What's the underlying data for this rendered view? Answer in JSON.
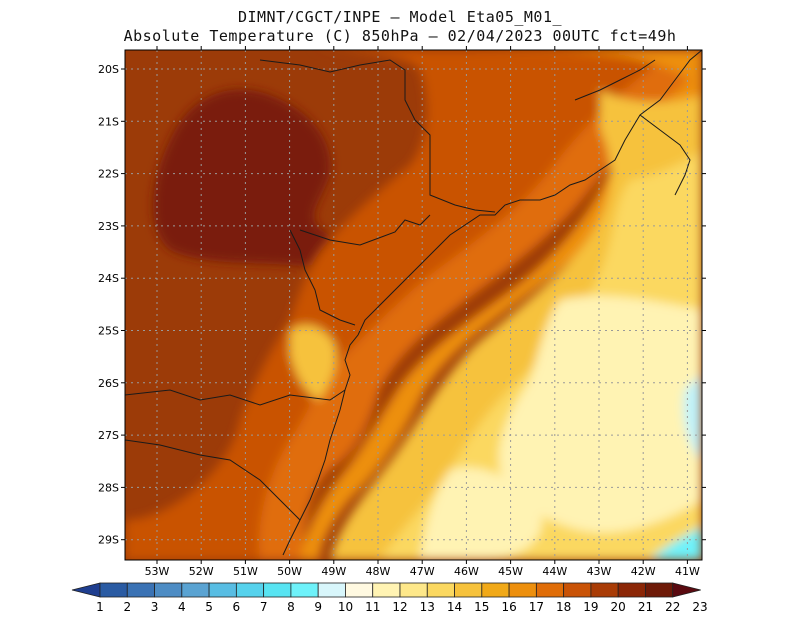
{
  "title_line1": "DIMNT/CGCT/INPE –  Model Eta05_M01_",
  "title_line2": "Absolute Temperature (C) 850hPa –  02/04/2023 00UTC fct=49h",
  "lat_labels": [
    "20S",
    "21S",
    "22S",
    "23S",
    "24S",
    "25S",
    "26S",
    "27S",
    "28S",
    "29S"
  ],
  "lon_labels": [
    "53W",
    "52W",
    "51W",
    "50W",
    "49W",
    "48W",
    "47W",
    "46W",
    "45W",
    "44W",
    "43W",
    "42W",
    "41W"
  ],
  "colorbar": {
    "labels": [
      "1",
      "2",
      "3",
      "4",
      "5",
      "6",
      "7",
      "8",
      "9",
      "10",
      "11",
      "12",
      "13",
      "14",
      "15",
      "16",
      "17",
      "18",
      "19",
      "20",
      "21",
      "22",
      "23"
    ],
    "colors": [
      "#1f3e8f",
      "#2a5ba3",
      "#3a72b4",
      "#4d8cc4",
      "#5aa3d2",
      "#58bde3",
      "#56d2ec",
      "#58e4f2",
      "#6ef2fa",
      "#d8f6fb",
      "#fff9e1",
      "#fff3b3",
      "#fee88a",
      "#fbd860",
      "#f6c23c",
      "#f1a918",
      "#ed8f0d",
      "#e06d08",
      "#c95306",
      "#a93c06",
      "#8b2606",
      "#6e1a08",
      "#5a0a10"
    ]
  },
  "colors": {
    "very_hot": "#7a1f0a",
    "hot": "#9c3b08",
    "warm": "#c95306",
    "orange": "#e06d08",
    "mid": "#ed8f0d",
    "light_orange": "#f6c23c",
    "yellow": "#fbd860",
    "pale": "#fff3b3",
    "cyan": "#bff3fb",
    "coast": "#1a1a1a",
    "grid": "#9a9a9a"
  }
}
